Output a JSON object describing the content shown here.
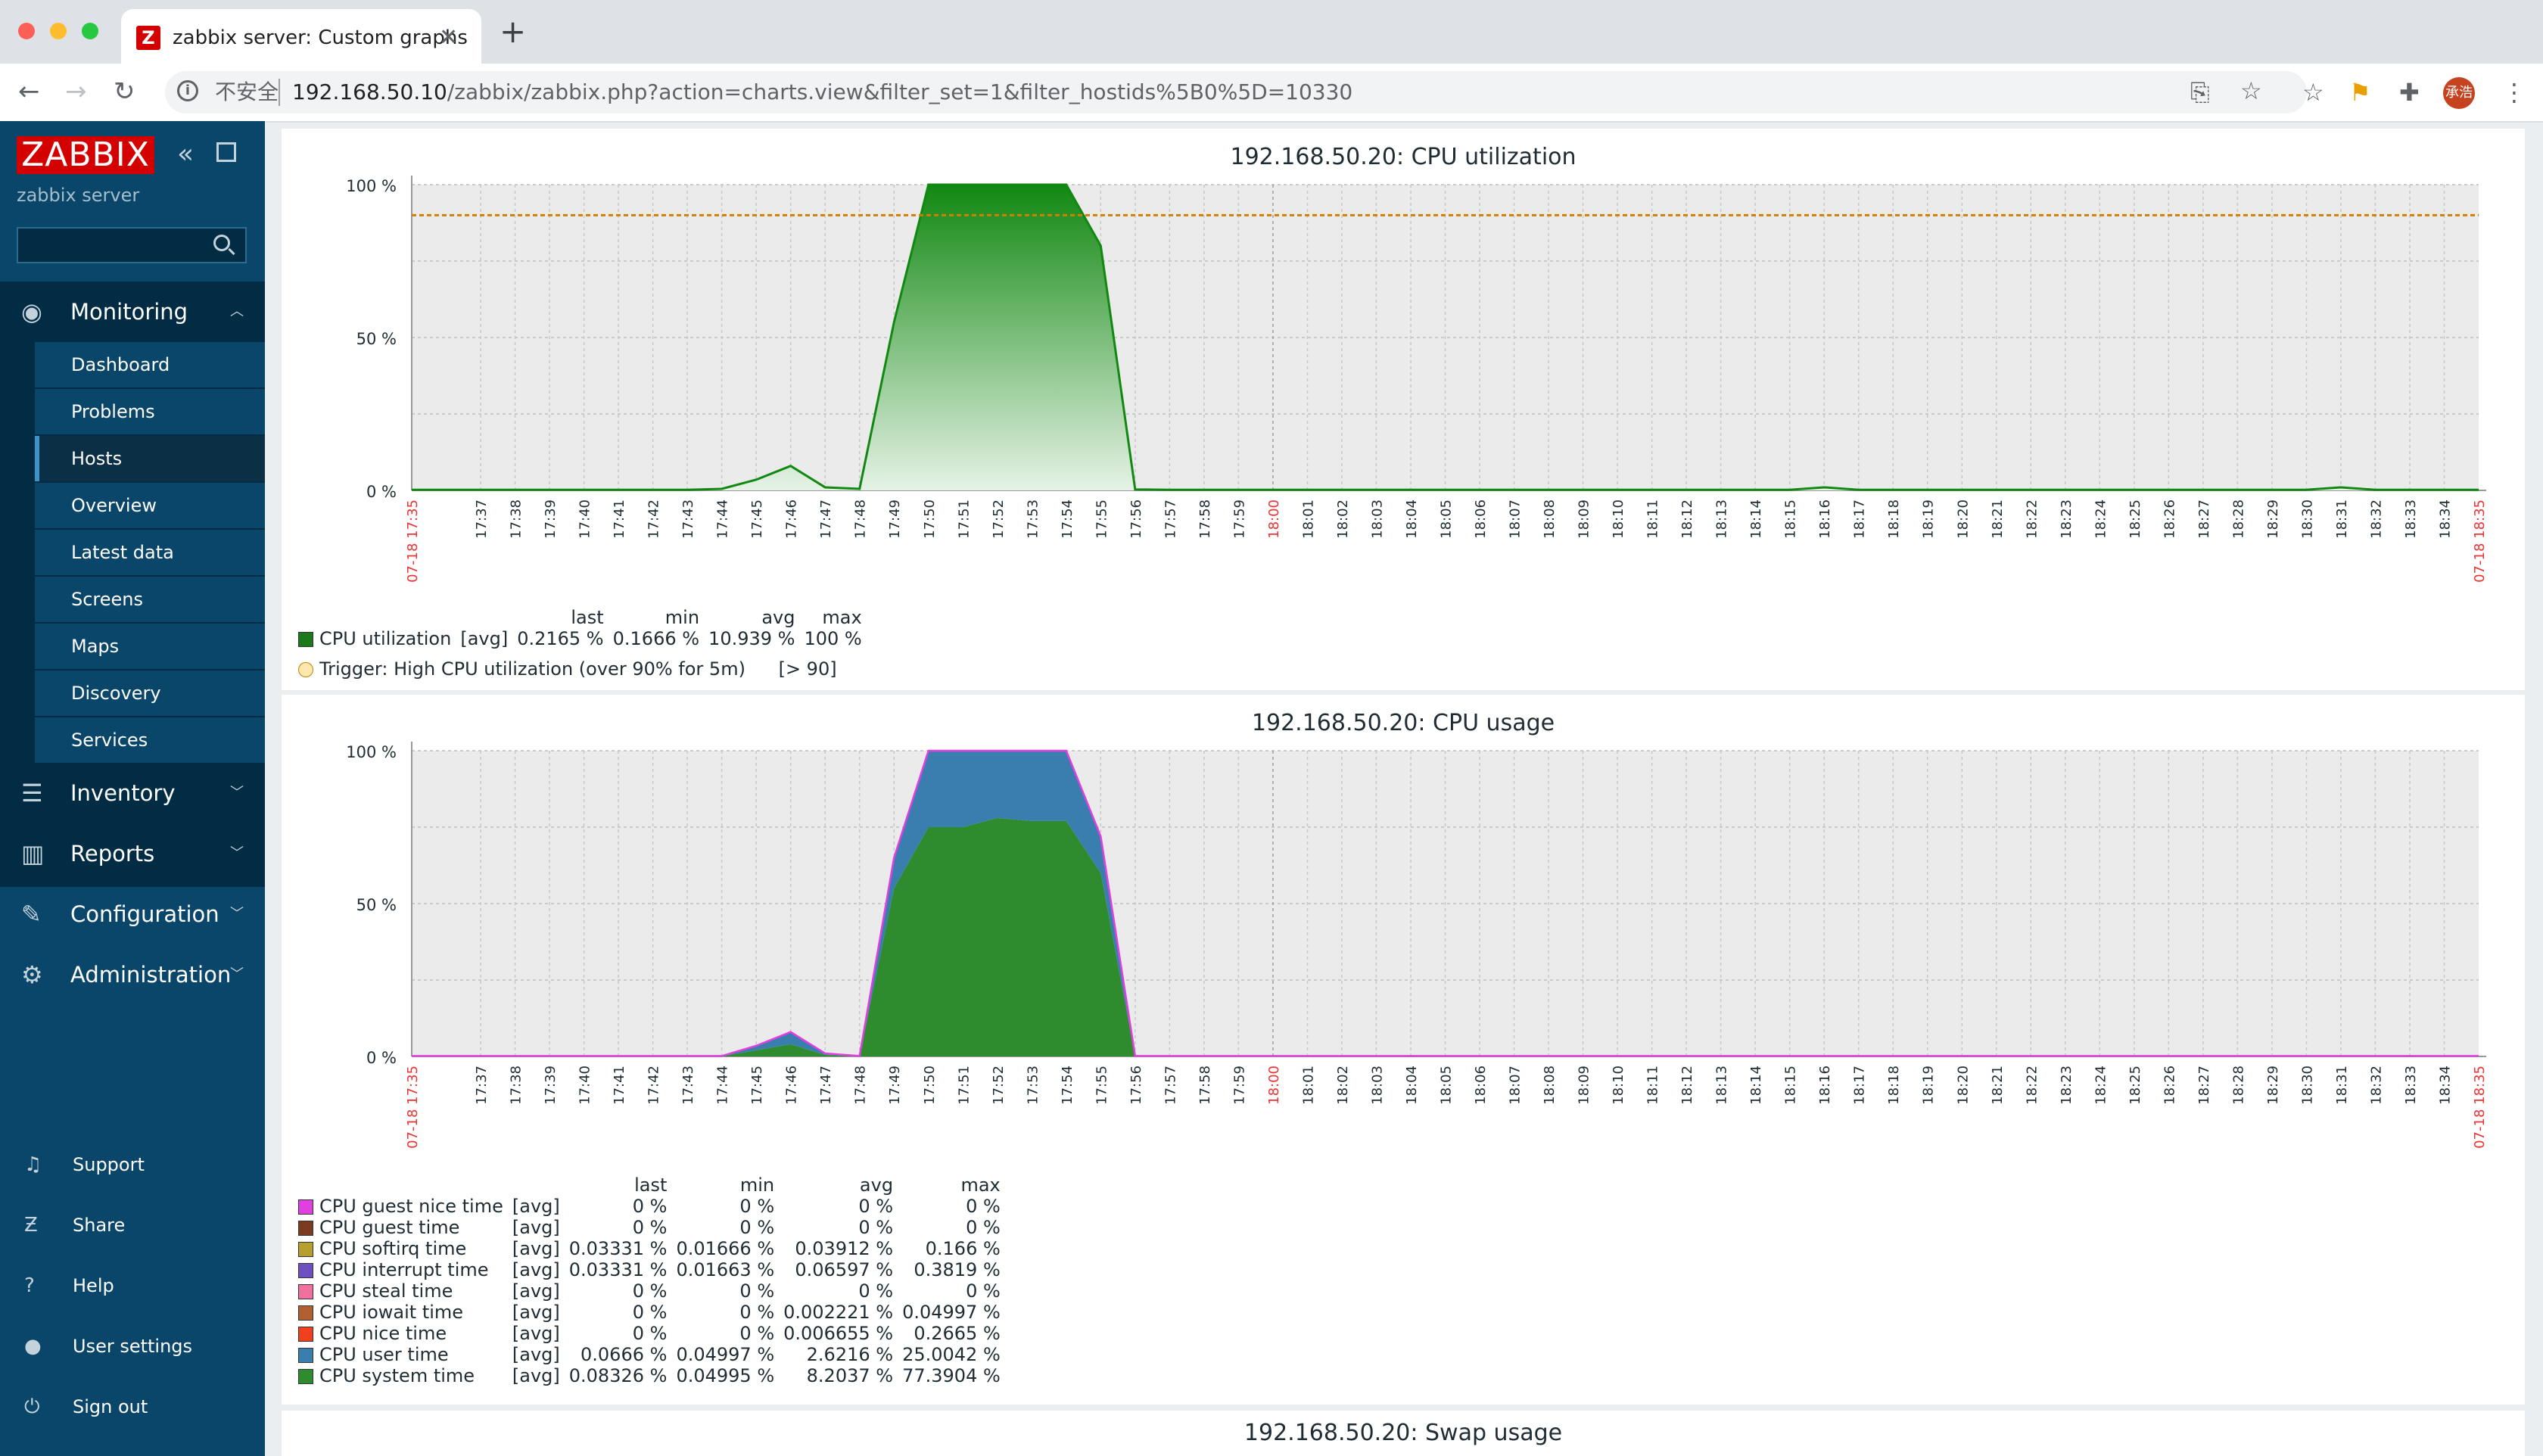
{
  "browser": {
    "tab_title": "zabbix server: Custom graphs",
    "favicon_letter": "Z",
    "insecure_label": "不安全",
    "url_host": "192.168.50.10",
    "url_path": "/zabbix/zabbix.php?action=charts.view&filter_set=1&filter_hostids%5B0%5D=10330",
    "avatar_text": "承浩"
  },
  "sidebar": {
    "logo": "ZABBIX",
    "server_name": "zabbix server",
    "search_placeholder": "",
    "monitoring": {
      "label": "Monitoring",
      "items": [
        "Dashboard",
        "Problems",
        "Hosts",
        "Overview",
        "Latest data",
        "Screens",
        "Maps",
        "Discovery",
        "Services"
      ],
      "active": "Hosts"
    },
    "sections": [
      "Inventory",
      "Reports",
      "Configuration",
      "Administration"
    ],
    "bottom": [
      "Support",
      "Share",
      "Help",
      "User settings",
      "Sign out"
    ]
  },
  "graphs": {
    "x_start_label": "07-18 17:35",
    "x_end_label": "07-18 18:35",
    "x_ticks": [
      "17:37",
      "17:38",
      "17:39",
      "17:40",
      "17:41",
      "17:42",
      "17:43",
      "17:44",
      "17:45",
      "17:46",
      "17:47",
      "17:48",
      "17:49",
      "17:50",
      "17:51",
      "17:52",
      "17:53",
      "17:54",
      "17:55",
      "17:56",
      "17:57",
      "17:58",
      "17:59",
      "18:00",
      "18:01",
      "18:02",
      "18:03",
      "18:04",
      "18:05",
      "18:06",
      "18:07",
      "18:08",
      "18:09",
      "18:10",
      "18:11",
      "18:12",
      "18:13",
      "18:14",
      "18:15",
      "18:16",
      "18:17",
      "18:18",
      "18:19",
      "18:20",
      "18:21",
      "18:22",
      "18:23",
      "18:24",
      "18:25",
      "18:26",
      "18:27",
      "18:28",
      "18:29",
      "18:30",
      "18:31",
      "18:32",
      "18:33",
      "18:34"
    ],
    "y_ticks": [
      "100 %",
      "50 %",
      "0 %"
    ],
    "cpu_utilization": {
      "title": "192.168.50.20: CPU utilization",
      "headers": [
        "last",
        "min",
        "avg",
        "max"
      ],
      "item": {
        "name": "CPU utilization",
        "fn": "[avg]",
        "last": "0.2165 %",
        "min": "0.1666 %",
        "avg": "10.939 %",
        "max": "100 %",
        "color": "#1a7a1a"
      },
      "trigger": {
        "label": "Trigger: High CPU utilization (over 90% for 5m)",
        "cond": "[> 90]",
        "value": 90,
        "color": "#f0a000"
      },
      "chart_data": {
        "type": "area",
        "x": [
          "17:35",
          "17:36",
          "17:37",
          "17:38",
          "17:39",
          "17:40",
          "17:41",
          "17:42",
          "17:43",
          "17:44",
          "17:45",
          "17:46",
          "17:47",
          "17:48",
          "17:49",
          "17:50",
          "17:51",
          "17:52",
          "17:53",
          "17:54",
          "17:55",
          "17:56",
          "17:57",
          "18:00",
          "18:15",
          "18:16",
          "18:17",
          "18:30",
          "18:31",
          "18:32",
          "18:35"
        ],
        "y": [
          0.2,
          0.2,
          0.2,
          0.2,
          0.2,
          0.2,
          0.2,
          0.2,
          0.2,
          0.5,
          3.5,
          8,
          1,
          0.5,
          55,
          100,
          100,
          100,
          100,
          100,
          80,
          0.3,
          0.2,
          0.2,
          0.2,
          1,
          0.2,
          0.2,
          1,
          0.2,
          0.2
        ],
        "ylim": [
          0,
          100
        ]
      }
    },
    "cpu_usage": {
      "title": "192.168.50.20: CPU usage",
      "headers": [
        "last",
        "min",
        "avg",
        "max"
      ],
      "items": [
        {
          "name": "CPU guest nice time",
          "fn": "[avg]",
          "last": "0 %",
          "min": "0 %",
          "avg": "0 %",
          "max": "0 %",
          "color": "#e040e0"
        },
        {
          "name": "CPU guest time",
          "fn": "[avg]",
          "last": "0 %",
          "min": "0 %",
          "avg": "0 %",
          "max": "0 %",
          "color": "#7a3b20"
        },
        {
          "name": "CPU softirq time",
          "fn": "[avg]",
          "last": "0.03331 %",
          "min": "0.01666 %",
          "avg": "0.03912 %",
          "max": "0.166 %",
          "color": "#b8a030"
        },
        {
          "name": "CPU interrupt time",
          "fn": "[avg]",
          "last": "0.03331 %",
          "min": "0.01663 %",
          "avg": "0.06597 %",
          "max": "0.3819 %",
          "color": "#7050c0"
        },
        {
          "name": "CPU steal time",
          "fn": "[avg]",
          "last": "0 %",
          "min": "0 %",
          "avg": "0 %",
          "max": "0 %",
          "color": "#f070a0"
        },
        {
          "name": "CPU iowait time",
          "fn": "[avg]",
          "last": "0 %",
          "min": "0 %",
          "avg": "0.002221 %",
          "max": "0.04997 %",
          "color": "#b06030"
        },
        {
          "name": "CPU nice time",
          "fn": "[avg]",
          "last": "0 %",
          "min": "0 %",
          "avg": "0.006655 %",
          "max": "0.2665 %",
          "color": "#f04020"
        },
        {
          "name": "CPU user time",
          "fn": "[avg]",
          "last": "0.0666 %",
          "min": "0.04997 %",
          "avg": "2.6216 %",
          "max": "25.0042 %",
          "color": "#3a7eb0"
        },
        {
          "name": "CPU system time",
          "fn": "[avg]",
          "last": "0.08326 %",
          "min": "0.04995 %",
          "avg": "8.2037 %",
          "max": "77.3904 %",
          "color": "#2e8b2e"
        }
      ],
      "chart_data": {
        "type": "area",
        "x": [
          "17:35",
          "17:44",
          "17:45",
          "17:46",
          "17:47",
          "17:48",
          "17:49",
          "17:50",
          "17:51",
          "17:52",
          "17:53",
          "17:54",
          "17:55",
          "17:56",
          "18:35"
        ],
        "series": [
          {
            "name": "CPU system time",
            "values": [
              0.1,
              0.1,
              2,
              4,
              0.5,
              0.1,
              55,
              75,
              75,
              78,
              77,
              77,
              60,
              0.1,
              0.1
            ]
          },
          {
            "name": "CPU user time",
            "values": [
              0.05,
              0.05,
              1.5,
              4,
              0.5,
              0.05,
              10,
              25,
              25,
              22,
              23,
              23,
              12,
              0.05,
              0.05
            ]
          }
        ],
        "ylim": [
          0,
          100
        ]
      }
    },
    "swap_usage": {
      "title": "192.168.50.20: Swap usage"
    }
  }
}
